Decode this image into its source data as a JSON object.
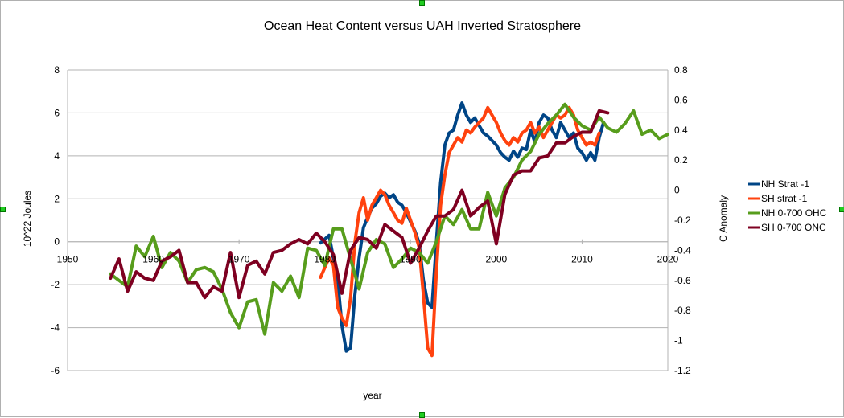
{
  "chart_data": {
    "type": "line",
    "title": "Ocean Heat Content versus UAH Inverted Stratosphere",
    "xlabel": "year",
    "ylabel_left": "10^22 Joules",
    "ylabel_right": "C Anomaly",
    "xlim": [
      1950,
      2020
    ],
    "ylim_left": [
      -6,
      8
    ],
    "ylim_right": [
      -1.2,
      0.8
    ],
    "x_ticks": [
      "1950",
      "1960",
      "1970",
      "1980",
      "1990",
      "2000",
      "2010",
      "2020"
    ],
    "y_ticks_left": [
      "-6",
      "-4",
      "-2",
      "0",
      "2",
      "4",
      "6",
      "8"
    ],
    "y_ticks_right": [
      "-1.2",
      "-1",
      "-0.8",
      "-0.6",
      "-0.4",
      "-0.2",
      "0",
      "0.2",
      "0.4",
      "0.6",
      "0.8"
    ],
    "grid": true,
    "legend": "right",
    "series": [
      {
        "name": "NH Strat -1",
        "color": "#004586",
        "axis": "right",
        "points": [
          [
            1979.5,
            -0.35
          ],
          [
            1980.5,
            -0.3
          ],
          [
            1981.5,
            -0.6
          ],
          [
            1982.0,
            -0.9
          ],
          [
            1982.5,
            -1.07
          ],
          [
            1983.0,
            -1.05
          ],
          [
            1983.5,
            -0.7
          ],
          [
            1984.0,
            -0.45
          ],
          [
            1984.5,
            -0.25
          ],
          [
            1985.0,
            -0.18
          ],
          [
            1985.5,
            -0.12
          ],
          [
            1986.0,
            -0.09
          ],
          [
            1986.5,
            -0.04
          ],
          [
            1987.0,
            -0.02
          ],
          [
            1987.5,
            -0.05
          ],
          [
            1988.0,
            -0.03
          ],
          [
            1988.5,
            -0.08
          ],
          [
            1989.0,
            -0.1
          ],
          [
            1989.5,
            -0.15
          ],
          [
            1990.0,
            -0.21
          ],
          [
            1990.5,
            -0.27
          ],
          [
            1991.0,
            -0.35
          ],
          [
            1991.5,
            -0.6
          ],
          [
            1992.0,
            -0.75
          ],
          [
            1992.5,
            -0.78
          ],
          [
            1993.0,
            -0.35
          ],
          [
            1993.5,
            0.05
          ],
          [
            1994.0,
            0.3
          ],
          [
            1994.5,
            0.38
          ],
          [
            1995.0,
            0.4
          ],
          [
            1995.5,
            0.5
          ],
          [
            1996.0,
            0.58
          ],
          [
            1996.5,
            0.5
          ],
          [
            1997.0,
            0.45
          ],
          [
            1997.5,
            0.48
          ],
          [
            1998.0,
            0.43
          ],
          [
            1998.5,
            0.38
          ],
          [
            1999.0,
            0.36
          ],
          [
            1999.5,
            0.33
          ],
          [
            2000.0,
            0.3
          ],
          [
            2000.5,
            0.25
          ],
          [
            2001.0,
            0.22
          ],
          [
            2001.5,
            0.2
          ],
          [
            2002.0,
            0.26
          ],
          [
            2002.5,
            0.22
          ],
          [
            2003.0,
            0.28
          ],
          [
            2003.5,
            0.27
          ],
          [
            2004.0,
            0.4
          ],
          [
            2004.5,
            0.32
          ],
          [
            2005.0,
            0.45
          ],
          [
            2005.5,
            0.5
          ],
          [
            2006.0,
            0.48
          ],
          [
            2006.5,
            0.4
          ],
          [
            2007.0,
            0.35
          ],
          [
            2007.5,
            0.45
          ],
          [
            2008.0,
            0.4
          ],
          [
            2008.5,
            0.35
          ],
          [
            2009.0,
            0.38
          ],
          [
            2009.5,
            0.28
          ],
          [
            2010.0,
            0.25
          ],
          [
            2010.5,
            0.2
          ],
          [
            2011.0,
            0.25
          ],
          [
            2011.5,
            0.2
          ],
          [
            2012.0,
            0.35
          ],
          [
            2012.5,
            0.45
          ]
        ]
      },
      {
        "name": "SH strat -1",
        "color": "#ff420e",
        "axis": "right",
        "points": [
          [
            1979.5,
            -0.58
          ],
          [
            1980.5,
            -0.45
          ],
          [
            1981.0,
            -0.5
          ],
          [
            1981.5,
            -0.78
          ],
          [
            1982.0,
            -0.85
          ],
          [
            1982.5,
            -0.9
          ],
          [
            1983.0,
            -0.72
          ],
          [
            1983.5,
            -0.35
          ],
          [
            1984.0,
            -0.15
          ],
          [
            1984.5,
            -0.05
          ],
          [
            1985.0,
            -0.2
          ],
          [
            1985.5,
            -0.1
          ],
          [
            1986.0,
            -0.05
          ],
          [
            1986.5,
            0.0
          ],
          [
            1987.0,
            -0.03
          ],
          [
            1987.5,
            -0.1
          ],
          [
            1988.0,
            -0.15
          ],
          [
            1988.5,
            -0.2
          ],
          [
            1989.0,
            -0.22
          ],
          [
            1989.5,
            -0.12
          ],
          [
            1990.0,
            -0.2
          ],
          [
            1990.5,
            -0.28
          ],
          [
            1991.0,
            -0.38
          ],
          [
            1991.5,
            -0.7
          ],
          [
            1992.0,
            -1.05
          ],
          [
            1992.5,
            -1.1
          ],
          [
            1993.0,
            -0.55
          ],
          [
            1993.5,
            -0.1
          ],
          [
            1994.0,
            0.1
          ],
          [
            1994.5,
            0.25
          ],
          [
            1995.0,
            0.3
          ],
          [
            1995.5,
            0.35
          ],
          [
            1996.0,
            0.32
          ],
          [
            1996.5,
            0.4
          ],
          [
            1997.0,
            0.38
          ],
          [
            1997.5,
            0.42
          ],
          [
            1998.0,
            0.45
          ],
          [
            1998.5,
            0.48
          ],
          [
            1999.0,
            0.55
          ],
          [
            1999.5,
            0.5
          ],
          [
            2000.0,
            0.45
          ],
          [
            2000.5,
            0.38
          ],
          [
            2001.0,
            0.33
          ],
          [
            2001.5,
            0.3
          ],
          [
            2002.0,
            0.35
          ],
          [
            2002.5,
            0.32
          ],
          [
            2003.0,
            0.38
          ],
          [
            2003.5,
            0.4
          ],
          [
            2004.0,
            0.45
          ],
          [
            2004.5,
            0.38
          ],
          [
            2005.0,
            0.42
          ],
          [
            2005.5,
            0.35
          ],
          [
            2006.0,
            0.4
          ],
          [
            2006.5,
            0.45
          ],
          [
            2007.0,
            0.5
          ],
          [
            2007.5,
            0.48
          ],
          [
            2008.0,
            0.5
          ],
          [
            2008.5,
            0.55
          ],
          [
            2009.0,
            0.5
          ],
          [
            2009.5,
            0.4
          ],
          [
            2010.0,
            0.35
          ],
          [
            2010.5,
            0.3
          ],
          [
            2011.0,
            0.32
          ],
          [
            2011.5,
            0.3
          ],
          [
            2012.0,
            0.38
          ]
        ]
      },
      {
        "name": "NH 0-700 OHC",
        "color": "#579d1c",
        "axis": "left",
        "points": [
          [
            1955,
            -1.5
          ],
          [
            1956,
            -1.8
          ],
          [
            1957,
            -2.1
          ],
          [
            1958,
            -0.2
          ],
          [
            1959,
            -0.7
          ],
          [
            1960,
            0.25
          ],
          [
            1961,
            -1.2
          ],
          [
            1962,
            -0.5
          ],
          [
            1963,
            -0.9
          ],
          [
            1964,
            -1.9
          ],
          [
            1965,
            -1.3
          ],
          [
            1966,
            -1.2
          ],
          [
            1967,
            -1.4
          ],
          [
            1968,
            -2.2
          ],
          [
            1969,
            -3.3
          ],
          [
            1970,
            -4.0
          ],
          [
            1971,
            -2.8
          ],
          [
            1972,
            -2.7
          ],
          [
            1973,
            -4.3
          ],
          [
            1974,
            -1.9
          ],
          [
            1975,
            -2.3
          ],
          [
            1976,
            -1.6
          ],
          [
            1977,
            -2.6
          ],
          [
            1978,
            -0.3
          ],
          [
            1979,
            -0.4
          ],
          [
            1980,
            -1.1
          ],
          [
            1981,
            0.6
          ],
          [
            1982,
            0.6
          ],
          [
            1983,
            -0.8
          ],
          [
            1984,
            -2.2
          ],
          [
            1985,
            -0.5
          ],
          [
            1986,
            0.1
          ],
          [
            1987,
            -0.1
          ],
          [
            1988,
            -1.2
          ],
          [
            1989,
            -0.8
          ],
          [
            1990,
            -0.3
          ],
          [
            1991,
            -0.5
          ],
          [
            1992,
            -1.0
          ],
          [
            1993,
            0.0
          ],
          [
            1994,
            1.2
          ],
          [
            1995,
            0.8
          ],
          [
            1996,
            1.5
          ],
          [
            1997,
            0.6
          ],
          [
            1998,
            0.6
          ],
          [
            1999,
            2.3
          ],
          [
            2000,
            1.2
          ],
          [
            2001,
            2.5
          ],
          [
            2002,
            3.0
          ],
          [
            2003,
            3.8
          ],
          [
            2004,
            4.2
          ],
          [
            2005,
            5.0
          ],
          [
            2006,
            5.5
          ],
          [
            2007,
            5.9
          ],
          [
            2008,
            6.4
          ],
          [
            2009,
            5.8
          ],
          [
            2010,
            5.4
          ],
          [
            2011,
            5.2
          ],
          [
            2012,
            5.8
          ],
          [
            2013,
            5.3
          ],
          [
            2014,
            5.1
          ],
          [
            2015,
            5.5
          ],
          [
            2016,
            6.1
          ],
          [
            2017,
            5.0
          ],
          [
            2018,
            5.2
          ],
          [
            2019,
            4.8
          ],
          [
            2020,
            5.0
          ]
        ]
      },
      {
        "name": "SH 0-700 ONC",
        "color": "#7e0021",
        "axis": "left",
        "points": [
          [
            1955,
            -1.7
          ],
          [
            1956,
            -0.8
          ],
          [
            1957,
            -2.3
          ],
          [
            1958,
            -1.4
          ],
          [
            1959,
            -1.7
          ],
          [
            1960,
            -1.8
          ],
          [
            1961,
            -0.9
          ],
          [
            1962,
            -0.7
          ],
          [
            1963,
            -0.4
          ],
          [
            1964,
            -1.9
          ],
          [
            1965,
            -1.9
          ],
          [
            1966,
            -2.6
          ],
          [
            1967,
            -2.1
          ],
          [
            1968,
            -2.3
          ],
          [
            1969,
            -0.5
          ],
          [
            1970,
            -2.6
          ],
          [
            1971,
            -1.1
          ],
          [
            1972,
            -0.9
          ],
          [
            1973,
            -1.5
          ],
          [
            1974,
            -0.5
          ],
          [
            1975,
            -0.4
          ],
          [
            1976,
            -0.1
          ],
          [
            1977,
            0.1
          ],
          [
            1978,
            -0.1
          ],
          [
            1979,
            0.4
          ],
          [
            1980,
            0.0
          ],
          [
            1981,
            -0.6
          ],
          [
            1982,
            -2.4
          ],
          [
            1983,
            -0.4
          ],
          [
            1984,
            0.2
          ],
          [
            1985,
            0.1
          ],
          [
            1986,
            -0.3
          ],
          [
            1987,
            0.8
          ],
          [
            1988,
            0.5
          ],
          [
            1989,
            0.2
          ],
          [
            1990,
            -1.0
          ],
          [
            1991,
            -0.3
          ],
          [
            1992,
            0.5
          ],
          [
            1993,
            1.2
          ],
          [
            1994,
            1.2
          ],
          [
            1995,
            1.5
          ],
          [
            1996,
            2.4
          ],
          [
            1997,
            1.2
          ],
          [
            1998,
            1.6
          ],
          [
            1999,
            1.9
          ],
          [
            2000,
            -0.1
          ],
          [
            2001,
            2.2
          ],
          [
            2002,
            3.1
          ],
          [
            2003,
            3.3
          ],
          [
            2004,
            3.3
          ],
          [
            2005,
            3.9
          ],
          [
            2006,
            4.0
          ],
          [
            2007,
            4.6
          ],
          [
            2008,
            4.6
          ],
          [
            2009,
            4.9
          ],
          [
            2010,
            5.1
          ],
          [
            2011,
            5.1
          ],
          [
            2012,
            6.1
          ],
          [
            2013,
            6.0
          ]
        ]
      }
    ]
  }
}
